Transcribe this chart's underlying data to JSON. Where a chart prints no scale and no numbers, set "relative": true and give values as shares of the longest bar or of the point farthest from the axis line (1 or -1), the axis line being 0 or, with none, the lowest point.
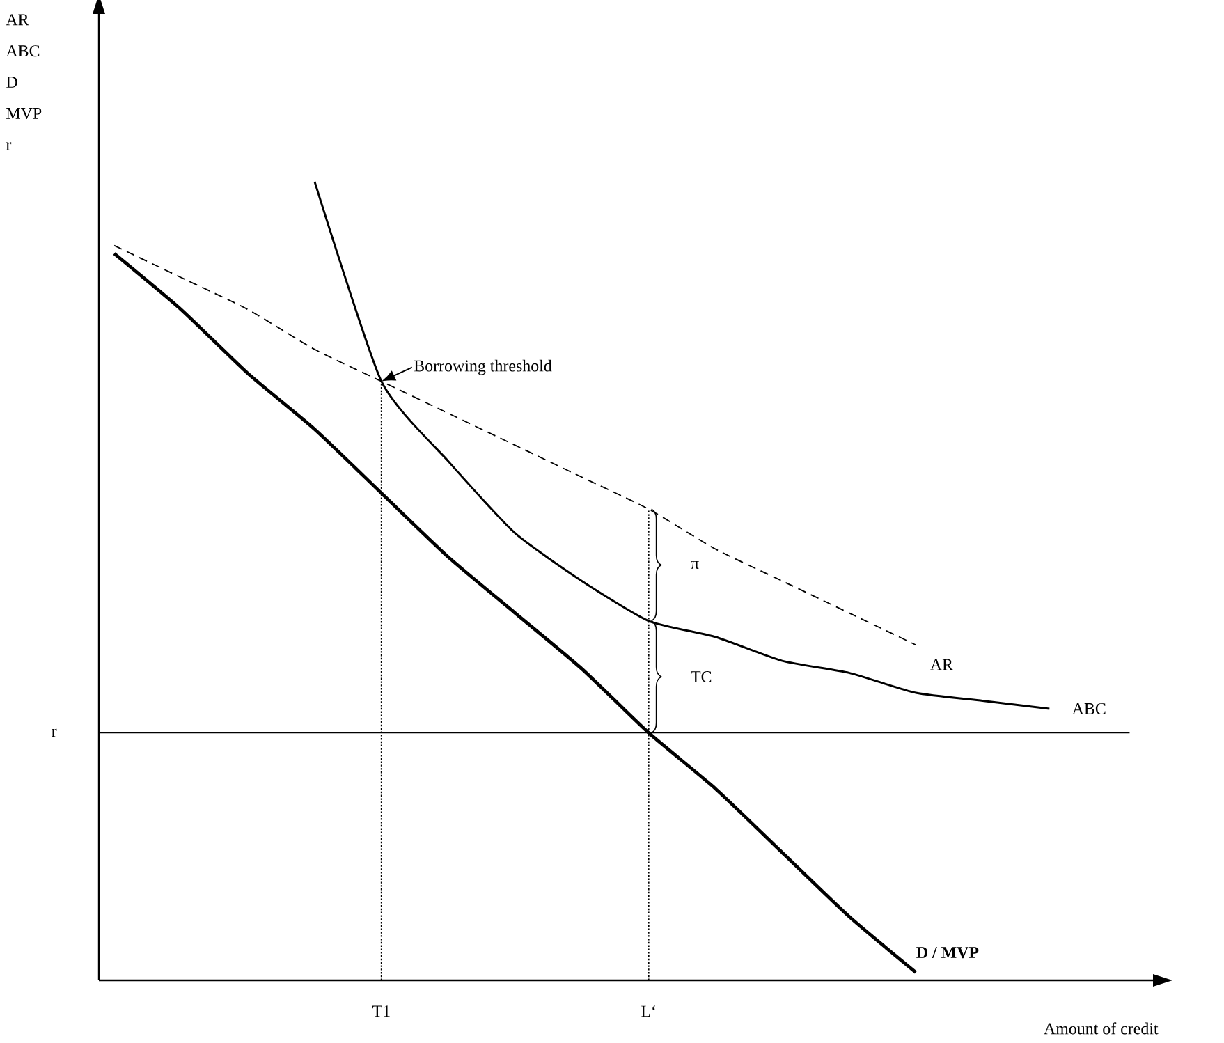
{
  "chart_data": {
    "type": "line",
    "relative": true,
    "ylabel": "AR ABC D MVP r",
    "xlabel": "Amount of credit",
    "categories": [
      null,
      null,
      null,
      null,
      "T1",
      null,
      null,
      null,
      "L‘",
      null,
      null,
      null,
      null,
      null,
      null
    ],
    "series": [
      {
        "name": "AR",
        "color": "#000000",
        "line_style": "dashed",
        "values": [
          0.92,
          0.88,
          0.84,
          0.79,
          0.75,
          0.71,
          0.67,
          0.63,
          0.59,
          0.54,
          0.5,
          0.46,
          0.42,
          null,
          null
        ]
      },
      {
        "name": "ABC",
        "color": "#000000",
        "values": [
          null,
          null,
          null,
          1.0,
          0.75,
          0.65,
          0.56,
          0.5,
          0.45,
          0.43,
          0.4,
          0.385,
          0.36,
          0.35,
          0.34
        ]
      },
      {
        "name": "**D / MVP**",
        "color": "#000000",
        "values": [
          0.91,
          0.84,
          0.76,
          0.69,
          0.61,
          0.53,
          0.46,
          0.39,
          0.31,
          0.24,
          0.16,
          0.08,
          0.01,
          null,
          null
        ]
      }
    ],
    "ref_lines": [
      {
        "axis": "y",
        "value": 0.31,
        "label": "r",
        "color": "#000000"
      },
      {
        "axis": "x",
        "value": "T1",
        "line_style": "dotted",
        "color": "#000000"
      },
      {
        "axis": "x",
        "value": "L‘",
        "line_style": "dotted",
        "color": "#000000"
      }
    ],
    "annotations": [
      {
        "text": "Borrowing threshold",
        "x": "T1",
        "y": 0.75
      },
      {
        "text": "π",
        "x": "L‘",
        "y": 0.52
      },
      {
        "text": "TC",
        "x": "L‘",
        "y": 0.38
      }
    ]
  }
}
